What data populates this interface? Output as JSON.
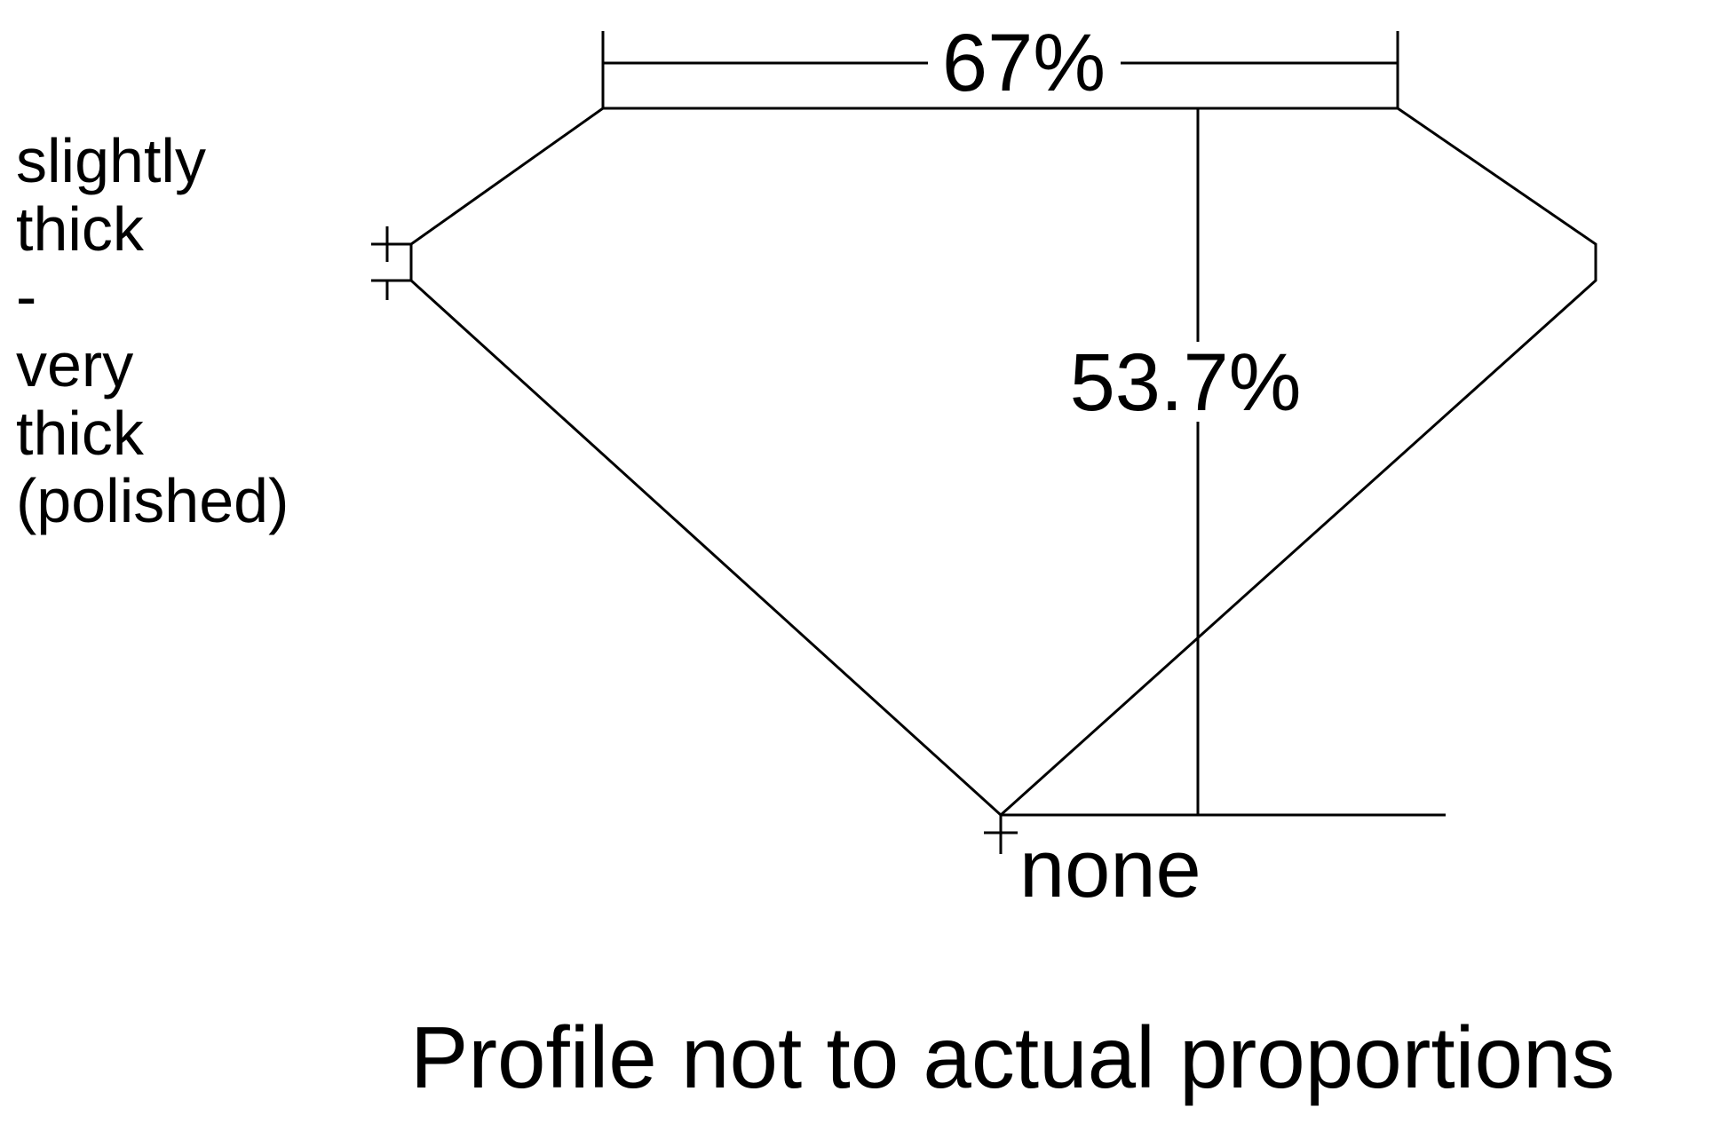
{
  "diagram": {
    "table_percentage": "67%",
    "total_depth_percentage": "53.7%",
    "culet_label": "none",
    "girdle_label_lines": [
      "slightly",
      "thick",
      "-",
      "very",
      "thick",
      "(polished)"
    ],
    "footer_note": "Profile not to actual proportions",
    "line_color": "#000000",
    "background_color": "#ffffff"
  }
}
